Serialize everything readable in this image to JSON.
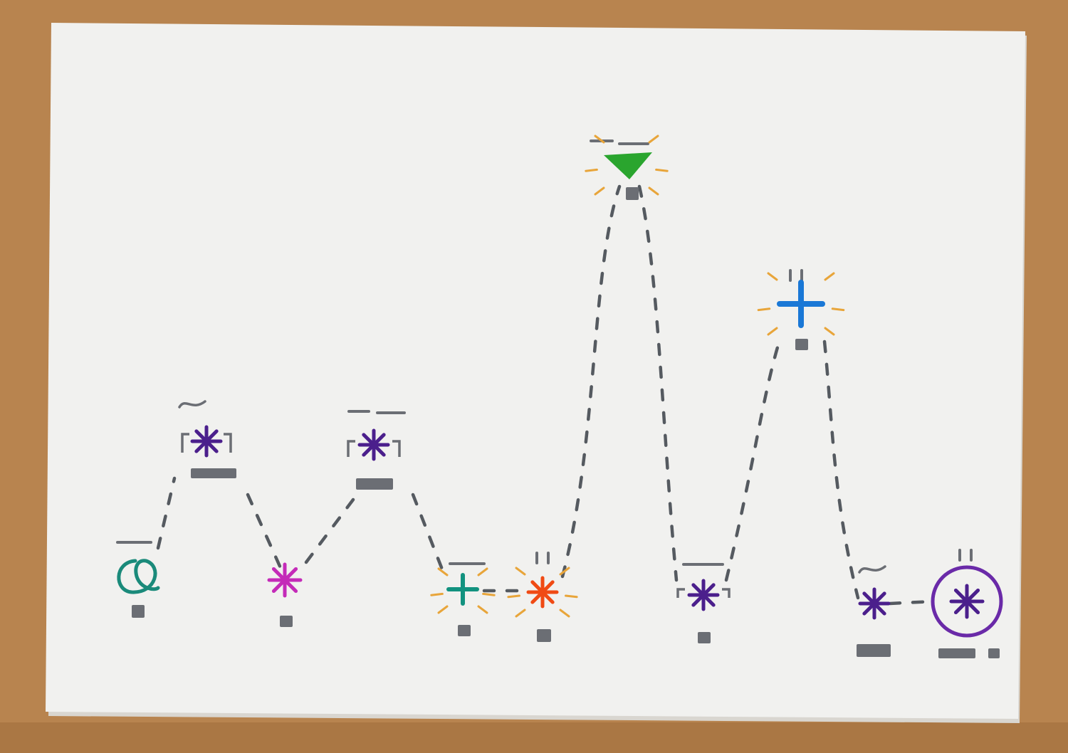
{
  "colors": {
    "table": "#b8844f",
    "table_dark": "#9c6a3a",
    "card": "#f1f1ef",
    "card_shadow": "#d9d6d0",
    "ink_dash": "#555a60",
    "ink_bar": "#6b6e74",
    "glow": "#e8a53a",
    "teal": "#1a8a7a",
    "purple": "#4b1f8c",
    "magenta": "#c42bb8",
    "green_teal": "#12927f",
    "orange": "#f04a14",
    "green": "#2aa52e",
    "blue": "#1a78d6",
    "violet": "#6a2aa8"
  },
  "icons": [
    "hollow-loop-icon",
    "asterisk-icon",
    "plus-icon",
    "triangle-icon",
    "circled-asterisk-icon"
  ]
}
